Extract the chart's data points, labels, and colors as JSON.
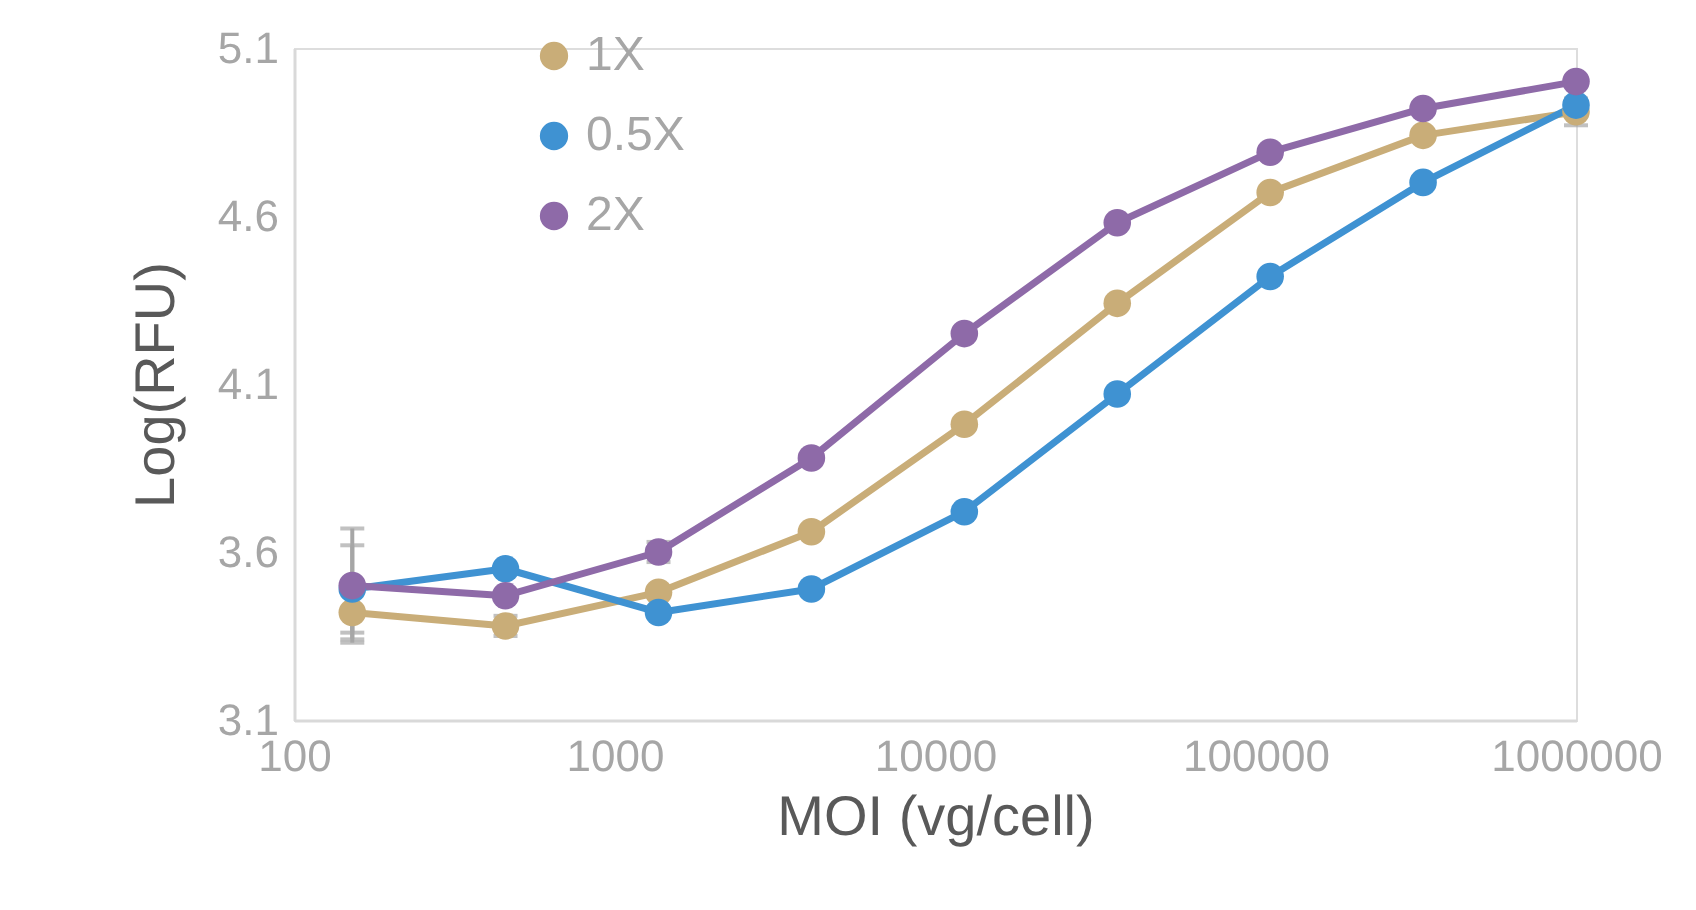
{
  "chart_data": {
    "type": "line",
    "xlabel": "MOI (vg/cell)",
    "ylabel": "Log(RFU)",
    "x": [
      152,
      457,
      1372,
      4115,
      12346,
      37037,
      111111,
      333333,
      1000000
    ],
    "series": [
      {
        "name": "1X",
        "color": "#c9ad78",
        "values": [
          3.42,
          3.38,
          3.48,
          3.66,
          3.98,
          4.34,
          4.67,
          4.84,
          4.91
        ],
        "errors": [
          0.08,
          0.03,
          null,
          null,
          null,
          null,
          null,
          null,
          0.04
        ]
      },
      {
        "name": "0.5X",
        "color": "#3f92d2",
        "values": [
          3.49,
          3.55,
          3.42,
          3.49,
          3.72,
          4.07,
          4.42,
          4.7,
          4.93
        ],
        "errors": [
          0.13,
          null,
          null,
          null,
          null,
          null,
          null,
          null,
          null
        ]
      },
      {
        "name": "2X",
        "color": "#8e6aa8",
        "values": [
          3.5,
          3.47,
          3.6,
          3.88,
          4.25,
          4.58,
          4.79,
          4.92,
          5.0
        ],
        "errors": [
          0.17,
          null,
          0.03,
          null,
          null,
          null,
          null,
          null,
          null
        ]
      }
    ],
    "log": "x",
    "xlim": [
      100,
      1000000
    ],
    "xticks": [
      100,
      1000,
      10000,
      100000,
      1000000
    ],
    "ylim": [
      3.1,
      5.1
    ],
    "yticks": [
      3.1,
      3.6,
      4.1,
      4.6,
      5.1
    ],
    "grid": false,
    "legend": "top left",
    "marker": "circle",
    "line_style": "solid"
  }
}
